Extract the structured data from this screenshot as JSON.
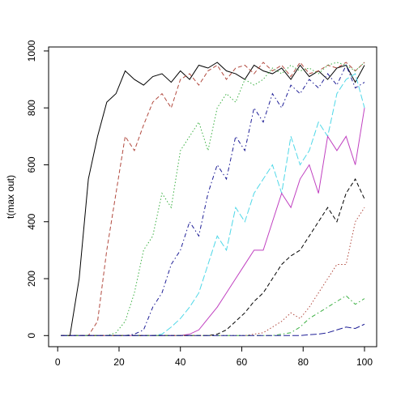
{
  "chart_data": {
    "type": "line",
    "y_label": "t(max out)",
    "x": [
      1,
      4,
      7,
      10,
      13,
      16,
      19,
      22,
      25,
      28,
      31,
      34,
      37,
      40,
      43,
      46,
      49,
      52,
      55,
      58,
      61,
      64,
      67,
      70,
      73,
      76,
      79,
      82,
      85,
      88,
      91,
      94,
      97,
      100
    ],
    "xlim": [
      -2.96,
      103.96
    ],
    "xticks": [
      0,
      20,
      40,
      60,
      80,
      100
    ],
    "ylim": [
      -39,
      1014
    ],
    "yticks": [
      0,
      200,
      400,
      600,
      800,
      1000
    ],
    "series": [
      {
        "color": "#000000",
        "linestyle": "solid",
        "values": [
          0,
          0,
          200,
          550,
          700,
          820,
          850,
          930,
          900,
          880,
          910,
          920,
          890,
          930,
          900,
          950,
          940,
          960,
          930,
          920,
          900,
          950,
          930,
          920,
          940,
          900,
          950,
          910,
          930,
          900,
          940,
          950,
          890,
          950
        ]
      },
      {
        "color": "#B24A3F",
        "linestyle": "dashed",
        "values": [
          0,
          0,
          0,
          0,
          50,
          300,
          500,
          700,
          650,
          740,
          820,
          850,
          800,
          900,
          920,
          880,
          930,
          950,
          900,
          940,
          950,
          920,
          960,
          930,
          950,
          910,
          960,
          920,
          930,
          950,
          940,
          960,
          930,
          960
        ]
      },
      {
        "color": "#3CB043",
        "linestyle": "dotted",
        "values": [
          0,
          0,
          0,
          0,
          0,
          0,
          10,
          50,
          150,
          300,
          350,
          500,
          450,
          650,
          700,
          750,
          650,
          800,
          850,
          820,
          900,
          880,
          900,
          940,
          920,
          950,
          930,
          940,
          920,
          950,
          960,
          950,
          930,
          960
        ]
      },
      {
        "color": "#1E1E96",
        "linestyle": "dotdash",
        "values": [
          0,
          0,
          0,
          0,
          0,
          0,
          0,
          0,
          5,
          20,
          100,
          150,
          250,
          300,
          400,
          350,
          500,
          600,
          550,
          700,
          650,
          800,
          750,
          850,
          800,
          880,
          850,
          900,
          870,
          920,
          880,
          950,
          870,
          890
        ]
      },
      {
        "color": "#4FD8E8",
        "linestyle": "longdash",
        "values": [
          0,
          0,
          0,
          0,
          0,
          0,
          0,
          0,
          0,
          0,
          0,
          5,
          30,
          60,
          100,
          150,
          250,
          350,
          300,
          450,
          400,
          500,
          550,
          600,
          500,
          700,
          600,
          650,
          750,
          700,
          850,
          900,
          920,
          800
        ]
      },
      {
        "color": "#C040C0",
        "linestyle": "solid",
        "values": [
          0,
          0,
          0,
          0,
          0,
          0,
          0,
          0,
          0,
          0,
          0,
          0,
          0,
          0,
          5,
          20,
          60,
          100,
          150,
          200,
          250,
          300,
          300,
          400,
          500,
          450,
          550,
          600,
          500,
          700,
          650,
          700,
          600,
          800
        ]
      },
      {
        "color": "#000000",
        "linestyle": "dashed",
        "values": [
          0,
          0,
          0,
          0,
          0,
          0,
          0,
          0,
          0,
          0,
          0,
          0,
          0,
          0,
          0,
          0,
          0,
          5,
          20,
          50,
          80,
          120,
          150,
          200,
          250,
          280,
          300,
          350,
          400,
          450,
          400,
          500,
          550,
          480
        ]
      },
      {
        "color": "#B24A3F",
        "linestyle": "dotted",
        "values": [
          0,
          0,
          0,
          0,
          0,
          0,
          0,
          0,
          0,
          0,
          0,
          0,
          0,
          0,
          0,
          0,
          0,
          0,
          0,
          0,
          0,
          5,
          10,
          30,
          50,
          80,
          60,
          100,
          150,
          200,
          250,
          250,
          400,
          450
        ]
      },
      {
        "color": "#3CB043",
        "linestyle": "dotdash",
        "values": [
          0,
          0,
          0,
          0,
          0,
          0,
          0,
          0,
          0,
          0,
          0,
          0,
          0,
          0,
          0,
          0,
          0,
          0,
          0,
          0,
          0,
          0,
          0,
          0,
          5,
          10,
          30,
          60,
          80,
          100,
          120,
          140,
          110,
          130
        ]
      },
      {
        "color": "#1E1E96",
        "linestyle": "longdash",
        "values": [
          0,
          0,
          0,
          0,
          0,
          0,
          0,
          0,
          0,
          0,
          0,
          0,
          0,
          0,
          0,
          0,
          0,
          0,
          0,
          0,
          0,
          0,
          0,
          0,
          0,
          0,
          0,
          3,
          5,
          10,
          20,
          30,
          25,
          40
        ]
      }
    ]
  }
}
